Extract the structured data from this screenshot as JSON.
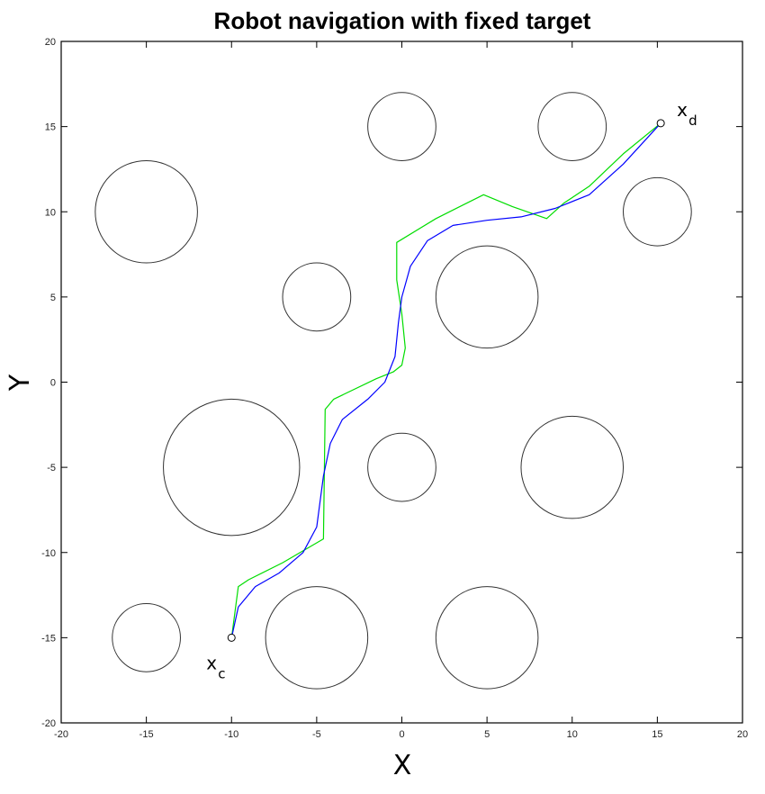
{
  "chart_data": {
    "type": "line",
    "title": "Robot navigation with fixed target",
    "xlabel": "X",
    "ylabel": "Y",
    "xlim": [
      -20,
      20
    ],
    "ylim": [
      -20,
      20
    ],
    "xticks": [
      -20,
      -15,
      -10,
      -5,
      0,
      5,
      10,
      15,
      20
    ],
    "yticks": [
      -20,
      -15,
      -10,
      -5,
      0,
      5,
      10,
      15,
      20
    ],
    "grid": false,
    "colors": {
      "green_path": "#00dd00",
      "blue_path": "#0000ff",
      "obstacle": "#333333",
      "markers": "#000000"
    },
    "obstacles": [
      {
        "cx": 0,
        "cy": 15,
        "r": 2
      },
      {
        "cx": 10,
        "cy": 15,
        "r": 2
      },
      {
        "cx": -15,
        "cy": 10,
        "r": 3
      },
      {
        "cx": 15,
        "cy": 10,
        "r": 2
      },
      {
        "cx": -5,
        "cy": 5,
        "r": 2
      },
      {
        "cx": 5,
        "cy": 5,
        "r": 3
      },
      {
        "cx": -10,
        "cy": -5,
        "r": 4
      },
      {
        "cx": 0,
        "cy": -5,
        "r": 2
      },
      {
        "cx": 10,
        "cy": -5,
        "r": 3
      },
      {
        "cx": -15,
        "cy": -15,
        "r": 2
      },
      {
        "cx": -5,
        "cy": -15,
        "r": 3
      },
      {
        "cx": 5,
        "cy": -15,
        "r": 3
      }
    ],
    "series": [
      {
        "color": "#00dd00",
        "points": [
          [
            -10,
            -15
          ],
          [
            -9.6,
            -12
          ],
          [
            -9,
            -11.6
          ],
          [
            -7,
            -10.6
          ],
          [
            -4.6,
            -9.2
          ],
          [
            -4.5,
            -1.6
          ],
          [
            -4,
            -1
          ],
          [
            -1.5,
            0.2
          ],
          [
            -0.5,
            0.6
          ],
          [
            0,
            1
          ],
          [
            0.2,
            2
          ],
          [
            0,
            4
          ],
          [
            -0.3,
            6
          ],
          [
            -0.3,
            8.2
          ],
          [
            2,
            9.6
          ],
          [
            4.8,
            11
          ],
          [
            6.5,
            10.3
          ],
          [
            8.5,
            9.6
          ],
          [
            9.5,
            10.5
          ],
          [
            11,
            11.5
          ],
          [
            13,
            13.4
          ],
          [
            15.2,
            15.2
          ]
        ]
      },
      {
        "color": "#0000ff",
        "points": [
          [
            -10,
            -15
          ],
          [
            -9.6,
            -13.2
          ],
          [
            -8.6,
            -12
          ],
          [
            -7.2,
            -11.2
          ],
          [
            -5.8,
            -10
          ],
          [
            -5,
            -8.5
          ],
          [
            -4.6,
            -5.5
          ],
          [
            -4.2,
            -3.6
          ],
          [
            -3.5,
            -2.2
          ],
          [
            -2,
            -1
          ],
          [
            -1,
            0
          ],
          [
            -0.4,
            1.5
          ],
          [
            -0.2,
            3.5
          ],
          [
            0,
            5
          ],
          [
            0.5,
            6.8
          ],
          [
            1.5,
            8.3
          ],
          [
            3,
            9.2
          ],
          [
            5,
            9.5
          ],
          [
            7,
            9.7
          ],
          [
            9,
            10.2
          ],
          [
            11,
            11
          ],
          [
            13,
            12.8
          ],
          [
            15.2,
            15.2
          ]
        ]
      }
    ],
    "points": [
      {
        "x": -10,
        "y": -15,
        "label": "x",
        "sub": "c"
      },
      {
        "x": 15.2,
        "y": 15.2,
        "label": "x",
        "sub": "d"
      }
    ]
  }
}
